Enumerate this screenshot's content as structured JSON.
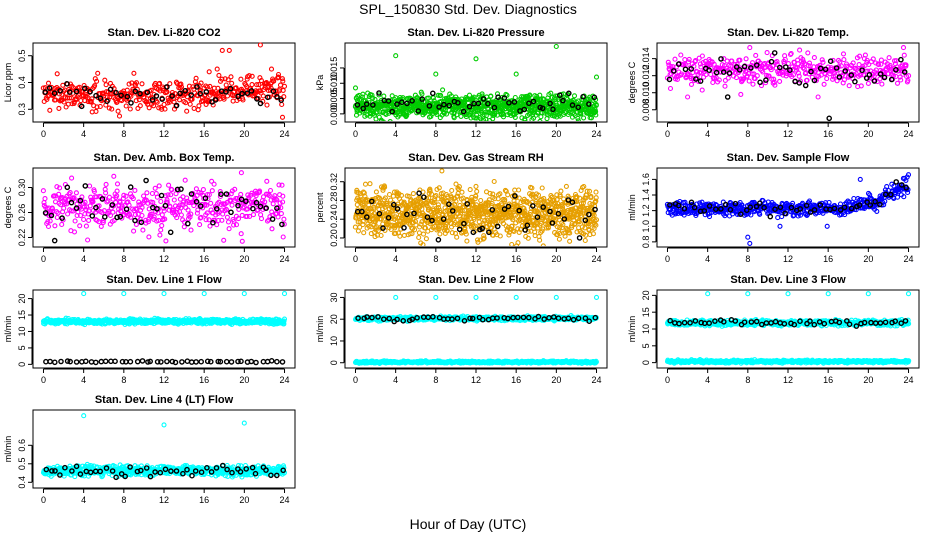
{
  "title": "SPL_150830  Std. Dev. Diagnostics",
  "xlabel": "Hour of Day (UTC)",
  "colors": {
    "co2": "#ff0000",
    "pressure": "#00cc00",
    "temp": "#ff00ff",
    "box_temp": "#ff00ff",
    "rh": "#e69f00",
    "sample_flow": "#0000ff",
    "line_flow": "#00ffff",
    "overlay": "#000000"
  },
  "chart_data": [
    {
      "type": "scatter",
      "title": "Stan. Dev. Li-820 CO2",
      "ylabel": "Licor ppm",
      "xlim": [
        0,
        24
      ],
      "xticks": [
        0,
        4,
        8,
        12,
        16,
        20,
        24
      ],
      "ylim": [
        0.26,
        0.54
      ],
      "yticks": [
        0.3,
        0.4,
        0.5
      ],
      "ytick_labels": [
        "0.3",
        "0.4",
        "0.5"
      ],
      "series": [
        {
          "name": "all",
          "color_key": "co2",
          "n": 420,
          "mean": 0.355,
          "spread": 0.028,
          "trend": [
            {
              "x": 16,
              "dy": 0.02
            }
          ],
          "outliers": [
            {
              "x": 16.5,
              "y": 0.44
            },
            {
              "x": 17.3,
              "y": 0.45
            },
            {
              "x": 17.8,
              "y": 0.52
            },
            {
              "x": 18.5,
              "y": 0.52
            },
            {
              "x": 21.6,
              "y": 0.54
            },
            {
              "x": 22.7,
              "y": 0.45
            },
            {
              "x": 23.4,
              "y": 0.43
            },
            {
              "x": 23.8,
              "y": 0.27
            }
          ]
        },
        {
          "name": "hourly",
          "color_key": "overlay",
          "n": 48,
          "mean": 0.352,
          "spread": 0.02
        }
      ]
    },
    {
      "type": "scatter",
      "title": "Stan. Dev. Li-820 Pressure",
      "ylabel": "kPa",
      "xlim": [
        0,
        24
      ],
      "xticks": [
        0,
        4,
        8,
        12,
        16,
        20,
        24
      ],
      "ylim": [
        -0.002,
        0.0225
      ],
      "yticks": [
        0.0,
        0.005,
        0.01,
        0.015
      ],
      "ytick_labels": [
        "0.000",
        "0.005",
        "0.010",
        "0.015"
      ],
      "series": [
        {
          "name": "all",
          "color_key": "pressure",
          "n": 900,
          "mean": 0.0025,
          "spread": 0.0019,
          "outliers": [
            {
              "x": 0.0,
              "y": 0.0085
            },
            {
              "x": 4.0,
              "y": 0.019
            },
            {
              "x": 8.0,
              "y": 0.013
            },
            {
              "x": 12.0,
              "y": 0.018
            },
            {
              "x": 16.0,
              "y": 0.013
            },
            {
              "x": 20.0,
              "y": 0.022
            },
            {
              "x": 24.0,
              "y": 0.012
            }
          ]
        },
        {
          "name": "hourly",
          "color_key": "overlay",
          "n": 48,
          "mean": 0.0035,
          "spread": 0.0016
        }
      ]
    },
    {
      "type": "scatter",
      "title": "Stan. Dev. Li-820 Temp.",
      "ylabel": "degrees C",
      "xlim": [
        0,
        24
      ],
      "xticks": [
        0,
        4,
        8,
        12,
        16,
        20,
        24
      ],
      "ylim": [
        0.0068,
        0.0156
      ],
      "yticks": [
        0.008,
        0.01,
        0.012,
        0.014
      ],
      "ytick_labels": [
        "0.008",
        "0.010",
        "0.012",
        "0.014"
      ],
      "series": [
        {
          "name": "all",
          "color_key": "temp",
          "n": 420,
          "mean": 0.0126,
          "spread": 0.00085,
          "outliers": [
            {
              "x": 0.3,
              "y": 0.0105
            },
            {
              "x": 2.0,
              "y": 0.0095
            },
            {
              "x": 7.3,
              "y": 0.0098
            },
            {
              "x": 8.2,
              "y": 0.0153
            },
            {
              "x": 15.0,
              "y": 0.0095
            },
            {
              "x": 19.3,
              "y": 0.0108
            },
            {
              "x": 23.5,
              "y": 0.0153
            }
          ]
        },
        {
          "name": "hourly",
          "color_key": "overlay",
          "n": 48,
          "mean": 0.0126,
          "spread": 0.0008,
          "outliers": [
            {
              "x": 6.0,
              "y": 0.0095
            },
            {
              "x": 16.1,
              "y": 0.007
            }
          ]
        }
      ]
    },
    {
      "type": "scatter",
      "title": "Stan. Dev. Amb. Box Temp.",
      "ylabel": "degrees C",
      "xlim": [
        0,
        24
      ],
      "xticks": [
        0,
        4,
        8,
        12,
        16,
        20,
        24
      ],
      "ylim": [
        0.208,
        0.328
      ],
      "yticks": [
        0.22,
        0.26,
        0.3
      ],
      "ytick_labels": [
        "0.22",
        "0.26",
        "0.30"
      ],
      "series": [
        {
          "name": "all",
          "color_key": "box_temp",
          "n": 450,
          "mean": 0.268,
          "spread": 0.018,
          "outliers": [
            {
              "x": 2.8,
              "y": 0.315
            },
            {
              "x": 7.0,
              "y": 0.318
            },
            {
              "x": 19.8,
              "y": 0.214
            },
            {
              "x": 10.5,
              "y": 0.221
            }
          ]
        },
        {
          "name": "hourly",
          "color_key": "overlay",
          "n": 48,
          "mean": 0.268,
          "spread": 0.017
        }
      ]
    },
    {
      "type": "scatter",
      "title": "Stan. Dev. Gas Stream RH",
      "ylabel": "percent",
      "xlim": [
        0,
        24
      ],
      "xticks": [
        0,
        4,
        8,
        12,
        16,
        20,
        24
      ],
      "ylim": [
        0.185,
        0.345
      ],
      "yticks": [
        0.2,
        0.24,
        0.28,
        0.32
      ],
      "ytick_labels": [
        "0.20",
        "0.24",
        "0.28",
        "0.32"
      ],
      "series": [
        {
          "name": "all",
          "color_key": "rh",
          "n": 1100,
          "mean": 0.253,
          "spread": 0.025,
          "outliers": [
            {
              "x": 8.6,
              "y": 0.343
            },
            {
              "x": 12.0,
              "y": 0.31
            },
            {
              "x": 21.0,
              "y": 0.31
            }
          ]
        },
        {
          "name": "hourly",
          "color_key": "overlay",
          "n": 48,
          "mean": 0.25,
          "spread": 0.022
        }
      ]
    },
    {
      "type": "scatter",
      "title": "Stan. Dev. Sample Flow",
      "ylabel": "ml/min",
      "xlim": [
        0,
        24
      ],
      "xticks": [
        0,
        4,
        8,
        12,
        16,
        20,
        24
      ],
      "ylim": [
        0.76,
        1.72
      ],
      "yticks": [
        0.8,
        1.0,
        1.2,
        1.4,
        1.6
      ],
      "ytick_labels": [
        "0.8",
        "1.0",
        "1.2",
        "1.4",
        "1.6"
      ],
      "series": [
        {
          "name": "all",
          "color_key": "sample_flow",
          "n": 520,
          "mean": 1.22,
          "spread": 0.045,
          "trend": [
            {
              "x": 18,
              "dy": 0.1
            },
            {
              "x": 21,
              "dy": 0.25
            }
          ],
          "outliers": [
            {
              "x": 8.0,
              "y": 0.86
            },
            {
              "x": 8.2,
              "y": 0.78
            },
            {
              "x": 11.2,
              "y": 1.0
            },
            {
              "x": 15.9,
              "y": 1.0
            },
            {
              "x": 19.2,
              "y": 1.6
            }
          ]
        },
        {
          "name": "hourly",
          "color_key": "overlay",
          "n": 48,
          "mean": 1.22,
          "spread": 0.05,
          "trend": [
            {
              "x": 18,
              "dy": 0.1
            },
            {
              "x": 21,
              "dy": 0.25
            }
          ]
        }
      ]
    },
    {
      "type": "scatter",
      "title": "Stan. Dev. Line 1 Flow",
      "ylabel": "ml/min",
      "xlim": [
        0,
        24
      ],
      "xticks": [
        0,
        4,
        8,
        12,
        16,
        20,
        24
      ],
      "ylim": [
        -0.5,
        22.0
      ],
      "yticks": [
        0,
        5,
        10,
        15,
        20
      ],
      "ytick_labels": [
        "0",
        "5",
        "10",
        "15",
        "20"
      ],
      "series": [
        {
          "name": "all",
          "color_key": "line_flow",
          "n": 700,
          "mean": 13.0,
          "spread": 0.35,
          "outliers": [
            {
              "x": 4.0,
              "y": 21.5
            },
            {
              "x": 8.0,
              "y": 21.5
            },
            {
              "x": 12.0,
              "y": 21.5
            },
            {
              "x": 16.0,
              "y": 21.5
            },
            {
              "x": 20.0,
              "y": 21.5
            },
            {
              "x": 24.0,
              "y": 21.5
            }
          ]
        },
        {
          "name": "hourly",
          "color_key": "overlay",
          "n": 48,
          "mean": 0.8,
          "spread": 0.12
        }
      ]
    },
    {
      "type": "scatter",
      "title": "Stan. Dev. Line 2 Flow",
      "ylabel": "ml/min",
      "xlim": [
        0,
        24
      ],
      "xticks": [
        0,
        4,
        8,
        12,
        16,
        20,
        24
      ],
      "ylim": [
        -1.5,
        32.5
      ],
      "yticks": [
        0,
        10,
        20,
        30
      ],
      "ytick_labels": [
        "0",
        "10",
        "20",
        "30"
      ],
      "series": [
        {
          "name": "floor",
          "color_key": "line_flow",
          "n": 480,
          "mean": 0.3,
          "spread": 0.25
        },
        {
          "name": "all",
          "color_key": "line_flow",
          "n": 600,
          "mean": 20.3,
          "spread": 0.45,
          "outliers": [
            {
              "x": 4.0,
              "y": 30.0
            },
            {
              "x": 8.0,
              "y": 30.0
            },
            {
              "x": 12.0,
              "y": 30.0
            },
            {
              "x": 16.0,
              "y": 30.0
            },
            {
              "x": 20.0,
              "y": 30.0
            },
            {
              "x": 24.0,
              "y": 30.0
            }
          ]
        },
        {
          "name": "hourly",
          "color_key": "overlay",
          "n": 48,
          "mean": 20.2,
          "spread": 0.5
        }
      ]
    },
    {
      "type": "scatter",
      "title": "Stan. Dev. Line 3 Flow",
      "ylabel": "ml/min",
      "xlim": [
        0,
        24
      ],
      "xticks": [
        0,
        4,
        8,
        12,
        16,
        20,
        24
      ],
      "ylim": [
        -1.0,
        21.0
      ],
      "yticks": [
        0,
        5,
        10,
        15,
        20
      ],
      "ytick_labels": [
        "0",
        "5",
        "10",
        "15",
        "20"
      ],
      "series": [
        {
          "name": "floor",
          "color_key": "line_flow",
          "n": 480,
          "mean": 0.3,
          "spread": 0.2
        },
        {
          "name": "all",
          "color_key": "line_flow",
          "n": 600,
          "mean": 11.8,
          "spread": 0.4,
          "outliers": [
            {
              "x": 4.0,
              "y": 20.5
            },
            {
              "x": 8.0,
              "y": 20.5
            },
            {
              "x": 12.0,
              "y": 20.5
            },
            {
              "x": 16.0,
              "y": 20.5
            },
            {
              "x": 20.0,
              "y": 20.5
            },
            {
              "x": 24.0,
              "y": 20.5
            }
          ]
        },
        {
          "name": "hourly",
          "color_key": "overlay",
          "n": 48,
          "mean": 11.9,
          "spread": 0.4
        }
      ]
    },
    {
      "type": "scatter",
      "title": "Stan. Dev. Line 4 (LT) Flow",
      "ylabel": "ml/min",
      "xlim": [
        0,
        24
      ],
      "xticks": [
        0,
        4,
        8,
        12,
        16,
        20,
        24
      ],
      "ylim": [
        0.38,
        0.78
      ],
      "yticks": [
        0.4,
        0.5,
        0.6
      ],
      "ytick_labels": [
        "0.4",
        "0.5",
        "0.6"
      ],
      "series": [
        {
          "name": "all",
          "color_key": "line_flow",
          "n": 700,
          "mean": 0.462,
          "spread": 0.013,
          "outliers": [
            {
              "x": 4.0,
              "y": 0.76
            },
            {
              "x": 12.0,
              "y": 0.71
            },
            {
              "x": 20.0,
              "y": 0.72
            }
          ]
        },
        {
          "name": "hourly",
          "color_key": "overlay",
          "n": 48,
          "mean": 0.458,
          "spread": 0.015
        }
      ]
    }
  ]
}
